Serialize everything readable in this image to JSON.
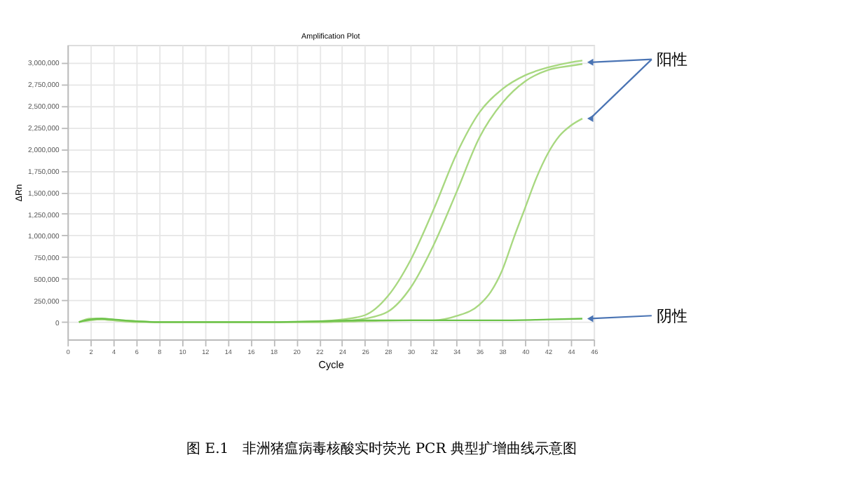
{
  "chart_data": {
    "type": "line",
    "title": "Amplification Plot",
    "xlabel": "Cycle",
    "ylabel": "ΔRn",
    "xlim": [
      0,
      46
    ],
    "xticks": [
      0,
      2,
      4,
      6,
      8,
      10,
      12,
      14,
      16,
      18,
      20,
      22,
      24,
      26,
      28,
      30,
      32,
      34,
      36,
      38,
      40,
      42,
      44,
      46
    ],
    "ylim": [
      -200000,
      3200000
    ],
    "yticks": [
      0,
      {
        "value": 250000,
        "label": "250,000"
      },
      {
        "value": 500000,
        "label": "500,000"
      },
      {
        "value": 750000,
        "label": "750,000"
      },
      {
        "value": 1000000,
        "label": "1,000,000"
      },
      {
        "value": 1250000,
        "label": "1,250,000"
      },
      {
        "value": 1500000,
        "label": "1,500,000"
      },
      {
        "value": 1750000,
        "label": "1,750,000"
      },
      {
        "value": 2000000,
        "label": "2,000,000"
      },
      {
        "value": 2250000,
        "label": "2,250,000"
      },
      {
        "value": 2500000,
        "label": "2,500,000"
      },
      {
        "value": 2750000,
        "label": "2,750,000"
      },
      {
        "value": 3000000,
        "label": "3,000,000"
      }
    ],
    "grid": true,
    "legend": false,
    "marker": "none",
    "line_style": "solid",
    "series": [
      {
        "color": "#a8d880",
        "x": [
          1,
          2,
          3,
          4,
          6,
          8,
          10,
          14,
          18,
          22,
          24,
          26,
          28,
          30,
          32,
          34,
          36,
          38,
          40,
          42,
          44,
          45
        ],
        "values": [
          0,
          40000,
          40000,
          30000,
          10000,
          0,
          0,
          0,
          0,
          10000,
          30000,
          80000,
          300000,
          720000,
          1300000,
          1940000,
          2420000,
          2690000,
          2850000,
          2940000,
          3000000,
          3020000
        ]
      },
      {
        "color": "#a8d880",
        "x": [
          1,
          2,
          3,
          4,
          6,
          8,
          10,
          14,
          18,
          22,
          24,
          26,
          28,
          30,
          32,
          34,
          36,
          38,
          40,
          42,
          44,
          45
        ],
        "values": [
          0,
          20000,
          30000,
          20000,
          10000,
          0,
          0,
          0,
          0,
          0,
          10000,
          40000,
          120000,
          400000,
          890000,
          1500000,
          2130000,
          2530000,
          2780000,
          2910000,
          2960000,
          2980000
        ]
      },
      {
        "color": "#a8d880",
        "x": [
          1,
          2,
          3,
          4,
          6,
          8,
          10,
          14,
          18,
          22,
          26,
          30,
          32,
          34,
          36,
          37,
          38,
          39,
          40,
          41,
          42,
          43,
          44,
          45
        ],
        "values": [
          0,
          30000,
          30000,
          20000,
          0,
          0,
          0,
          0,
          0,
          0,
          10000,
          20000,
          20000,
          70000,
          200000,
          350000,
          600000,
          970000,
          1320000,
          1670000,
          1950000,
          2150000,
          2270000,
          2350000
        ]
      },
      {
        "color": "#6cc24a",
        "x": [
          1,
          2,
          3,
          4,
          6,
          8,
          10,
          14,
          18,
          22,
          26,
          30,
          34,
          38,
          42,
          45
        ],
        "values": [
          0,
          30000,
          40000,
          30000,
          10000,
          0,
          0,
          0,
          0,
          10000,
          20000,
          20000,
          20000,
          20000,
          30000,
          40000
        ]
      }
    ],
    "annotations": [
      {
        "text": "阳性",
        "x": 45,
        "y": 3000000
      },
      {
        "text": "阴性",
        "x": 45,
        "y": 40000
      },
      "图 E.1　非洲猪瘟病毒核酸实时荧光 PCR 典型扩增曲线示意图"
    ]
  }
}
